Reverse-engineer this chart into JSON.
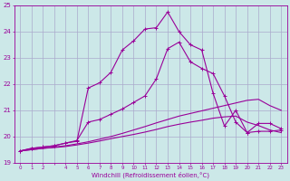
{
  "xlabel": "Windchill (Refroidissement éolien,°C)",
  "x_values": [
    0,
    1,
    2,
    3,
    4,
    5,
    6,
    7,
    8,
    9,
    10,
    11,
    12,
    13,
    14,
    15,
    16,
    17,
    18,
    19,
    20,
    21,
    22,
    23
  ],
  "line1_marked": [
    19.45,
    19.55,
    19.6,
    19.65,
    19.75,
    19.85,
    20.55,
    20.65,
    20.85,
    21.05,
    21.3,
    21.55,
    22.2,
    23.35,
    23.6,
    22.85,
    22.6,
    22.4,
    21.55,
    20.55,
    20.15,
    20.2,
    20.2,
    20.25
  ],
  "line2_marked": [
    19.45,
    19.55,
    19.6,
    19.65,
    19.75,
    19.82,
    21.85,
    22.05,
    22.45,
    23.3,
    23.65,
    24.1,
    24.15,
    24.75,
    24.0,
    23.5,
    23.3,
    21.65,
    20.4,
    21.0,
    20.15,
    20.5,
    20.5,
    20.3
  ],
  "line3_flat": [
    19.45,
    19.5,
    19.55,
    19.6,
    19.65,
    19.72,
    19.8,
    19.9,
    20.0,
    20.12,
    20.25,
    20.38,
    20.52,
    20.65,
    20.78,
    20.88,
    20.98,
    21.08,
    21.18,
    21.28,
    21.38,
    21.42,
    21.18,
    21.0
  ],
  "line4_flat": [
    19.45,
    19.5,
    19.55,
    19.58,
    19.62,
    19.68,
    19.75,
    19.83,
    19.92,
    20.0,
    20.08,
    20.17,
    20.27,
    20.38,
    20.47,
    20.55,
    20.62,
    20.7,
    20.75,
    20.78,
    20.55,
    20.42,
    20.25,
    20.15
  ],
  "line_color": "#990099",
  "bg_color": "#cce8e8",
  "grid_color": "#aaaacc",
  "ylim": [
    19,
    25
  ],
  "yticks": [
    19,
    20,
    21,
    22,
    23,
    24,
    25
  ],
  "xtick_labels": [
    "0",
    "1",
    "2",
    "",
    "4",
    "5",
    "6",
    "7",
    "8",
    "9",
    "10",
    "11",
    "12",
    "13",
    "14",
    "15",
    "16",
    "17",
    "18",
    "19",
    "20",
    "21",
    "22",
    "23"
  ]
}
